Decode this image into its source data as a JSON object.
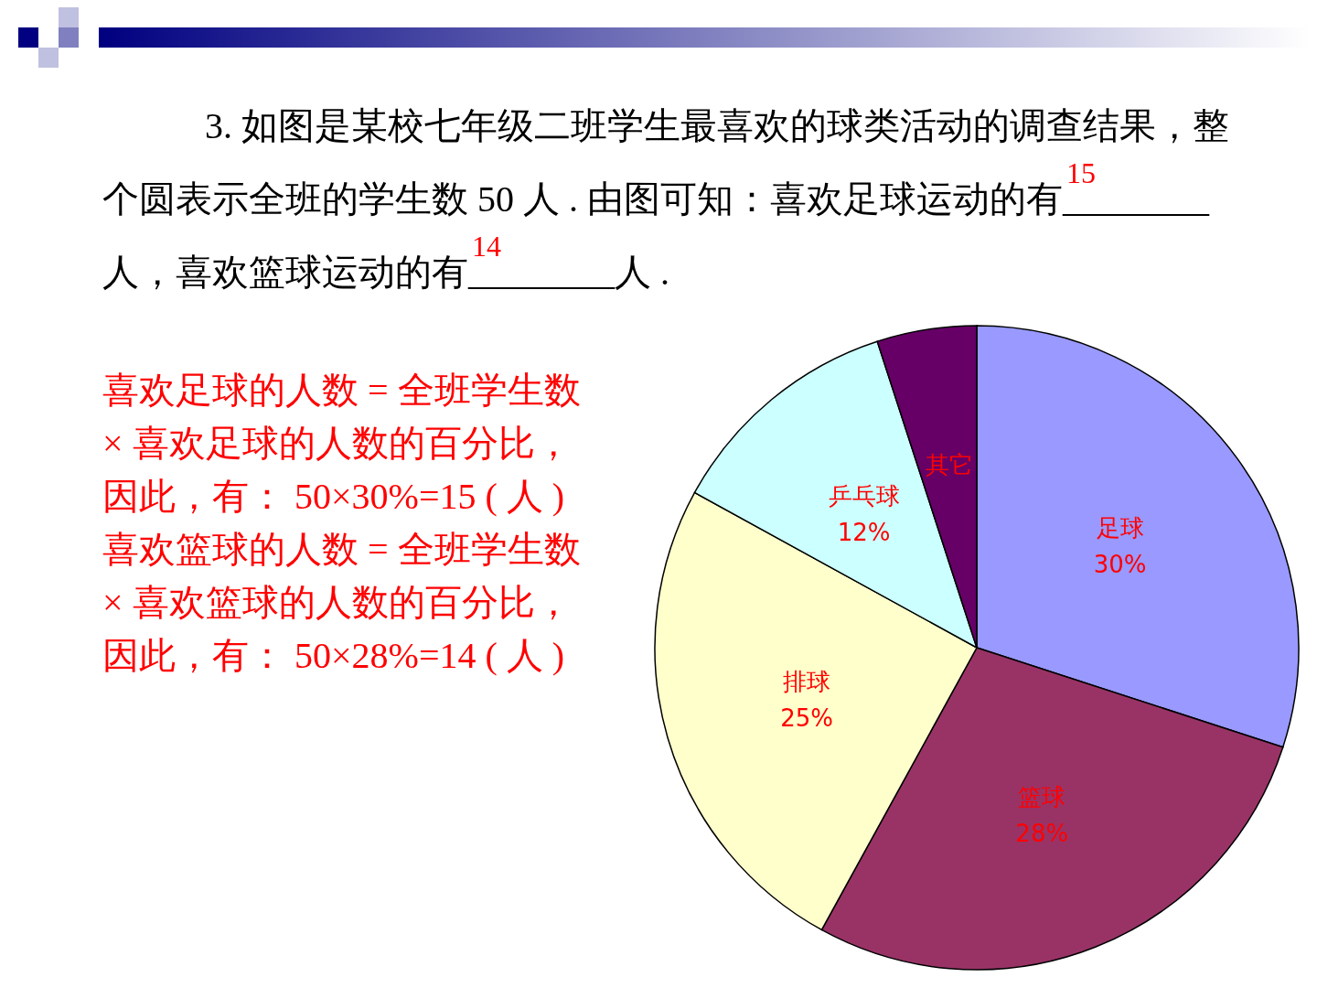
{
  "chart_data": {
    "type": "pie",
    "title": "3. 如图是某校七年级二班学生最喜欢的球类活动的调查结果，整个圆表示全班的学生数 50 人 . 由图可知：喜欢足球运动的有________人，喜欢篮球运动的有________人 .",
    "annotations": [
      "15",
      "14",
      "喜欢足球的人数 = 全班学生数 × 喜欢足球的人数的百分比，",
      "因此，有： 50×30%=15 ( 人 )",
      "喜欢篮球的人数 = 全班学生数 × 喜欢篮球的人数的百分比，",
      "因此，有： 50×28%=14 ( 人 )"
    ],
    "categories": [
      "足球",
      "篮球",
      "排球",
      "乒乓球",
      "其它"
    ],
    "values": [
      30,
      28,
      25,
      12,
      5
    ],
    "value_labels": [
      "30%",
      "28%",
      "25%",
      "12%",
      null
    ],
    "colors": [
      "#9999ff",
      "#993366",
      "#ffffcc",
      "#ccffff",
      "#660066"
    ]
  }
}
